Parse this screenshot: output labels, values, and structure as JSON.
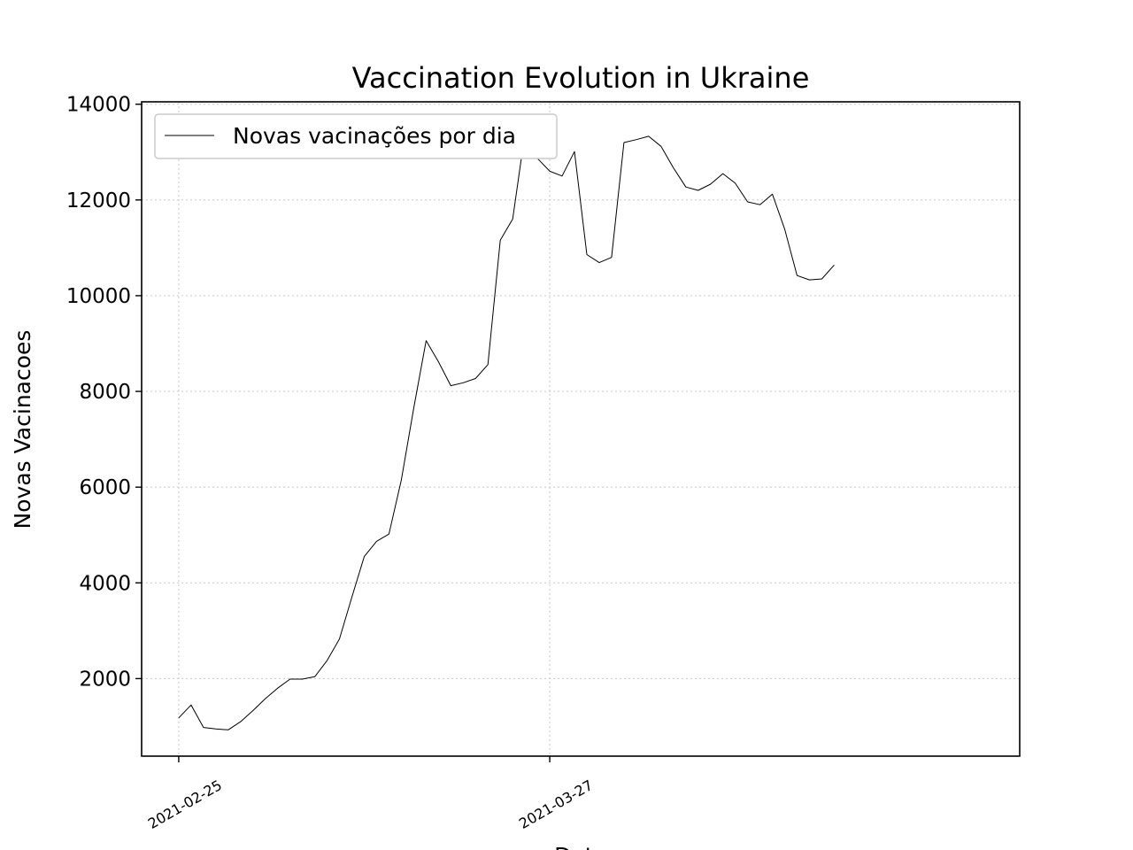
{
  "chart_data": {
    "type": "line",
    "title": "Vaccination Evolution in Ukraine",
    "xlabel": "Data",
    "ylabel": "Novas Vacinacoes",
    "ylim": [
      380,
      14050
    ],
    "yticks": [
      2000,
      4000,
      6000,
      8000,
      10000,
      12000,
      14000
    ],
    "ytick_labels": [
      "2000",
      "4000",
      "6000",
      "8000",
      "10000",
      "12000",
      "14000"
    ],
    "xlim": [
      "2021-02-22",
      "2021-05-04"
    ],
    "xticks": [
      "2021-02-25",
      "2021-03-27"
    ],
    "xtick_labels": [
      "2021-02-25",
      "2021-03-27"
    ],
    "grid": true,
    "legend_position": "top-left",
    "line_color": "#000000",
    "series": [
      {
        "name": "Novas vacinações por dia",
        "x": [
          "2021-02-25",
          "2021-02-26",
          "2021-02-27",
          "2021-02-28",
          "2021-03-01",
          "2021-03-02",
          "2021-03-03",
          "2021-03-04",
          "2021-03-05",
          "2021-03-06",
          "2021-03-07",
          "2021-03-08",
          "2021-03-09",
          "2021-03-10",
          "2021-03-11",
          "2021-03-12",
          "2021-03-13",
          "2021-03-14",
          "2021-03-15",
          "2021-03-16",
          "2021-03-17",
          "2021-03-18",
          "2021-03-19",
          "2021-03-20",
          "2021-03-21",
          "2021-03-22",
          "2021-03-23",
          "2021-03-24",
          "2021-03-25",
          "2021-03-26",
          "2021-03-27",
          "2021-03-28",
          "2021-03-29",
          "2021-03-30",
          "2021-03-31",
          "2021-04-01",
          "2021-04-02",
          "2021-04-03",
          "2021-04-04",
          "2021-04-05",
          "2021-04-06",
          "2021-04-07",
          "2021-04-08",
          "2021-04-09",
          "2021-04-10",
          "2021-04-11",
          "2021-04-12",
          "2021-04-13",
          "2021-04-14",
          "2021-04-15",
          "2021-04-16",
          "2021-04-17",
          "2021-04-18",
          "2021-04-19",
          "2021-04-20"
        ],
        "values": [
          1180,
          1450,
          980,
          950,
          930,
          1100,
          1330,
          1580,
          1800,
          1990,
          1990,
          2040,
          2380,
          2830,
          3700,
          4550,
          4870,
          5020,
          6150,
          7650,
          9060,
          8620,
          8120,
          8180,
          8270,
          8560,
          11160,
          11600,
          13400,
          12870,
          12600,
          12500,
          13010,
          10860,
          10690,
          10800,
          13200,
          13260,
          13330,
          13120,
          12670,
          12270,
          12200,
          12330,
          12550,
          12350,
          11960,
          11900,
          12120,
          11390,
          10420,
          10330,
          10350,
          10640,
          null
        ]
      }
    ]
  }
}
